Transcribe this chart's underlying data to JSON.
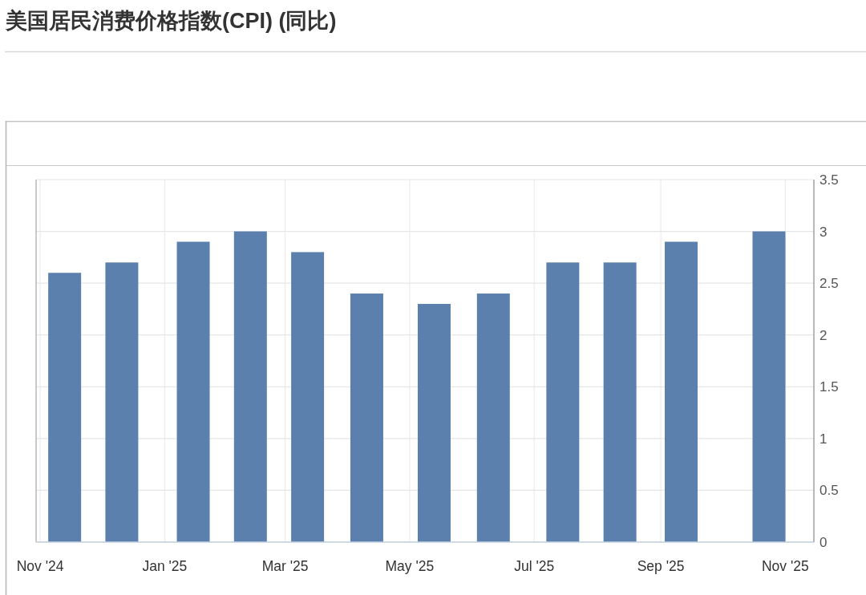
{
  "chart_data": {
    "type": "bar",
    "title": "美国居民消费价格指数(CPI) (同比)",
    "x": [
      "2024-11-13",
      "2024-12-11",
      "2025-01-15",
      "2025-02-12",
      "2025-03-12",
      "2025-04-10",
      "2025-05-13",
      "2025-06-11",
      "2025-07-15",
      "2025-08-12",
      "2025-09-11",
      "2025-10-24"
    ],
    "values": [
      2.6,
      2.7,
      2.9,
      3.0,
      2.8,
      2.4,
      2.3,
      2.4,
      2.7,
      2.7,
      2.9,
      3.0
    ],
    "color": "#5b80ad",
    "xlim": [
      "2024-10-30",
      "2025-11-15"
    ],
    "xticks": [
      {
        "value": "2024-11-01",
        "label": "Nov '24"
      },
      {
        "value": "2025-01-01",
        "label": "Jan '25"
      },
      {
        "value": "2025-03-01",
        "label": "Mar '25"
      },
      {
        "value": "2025-05-01",
        "label": "May '25"
      },
      {
        "value": "2025-07-01",
        "label": "Jul '25"
      },
      {
        "value": "2025-09-01",
        "label": "Sep '25"
      },
      {
        "value": "2025-11-01",
        "label": "Nov '25"
      }
    ],
    "ylim": [
      0,
      3.5
    ],
    "yticks": [
      0,
      0.5,
      1,
      1.5,
      2,
      2.5,
      3,
      3.5
    ],
    "grid": true
  }
}
